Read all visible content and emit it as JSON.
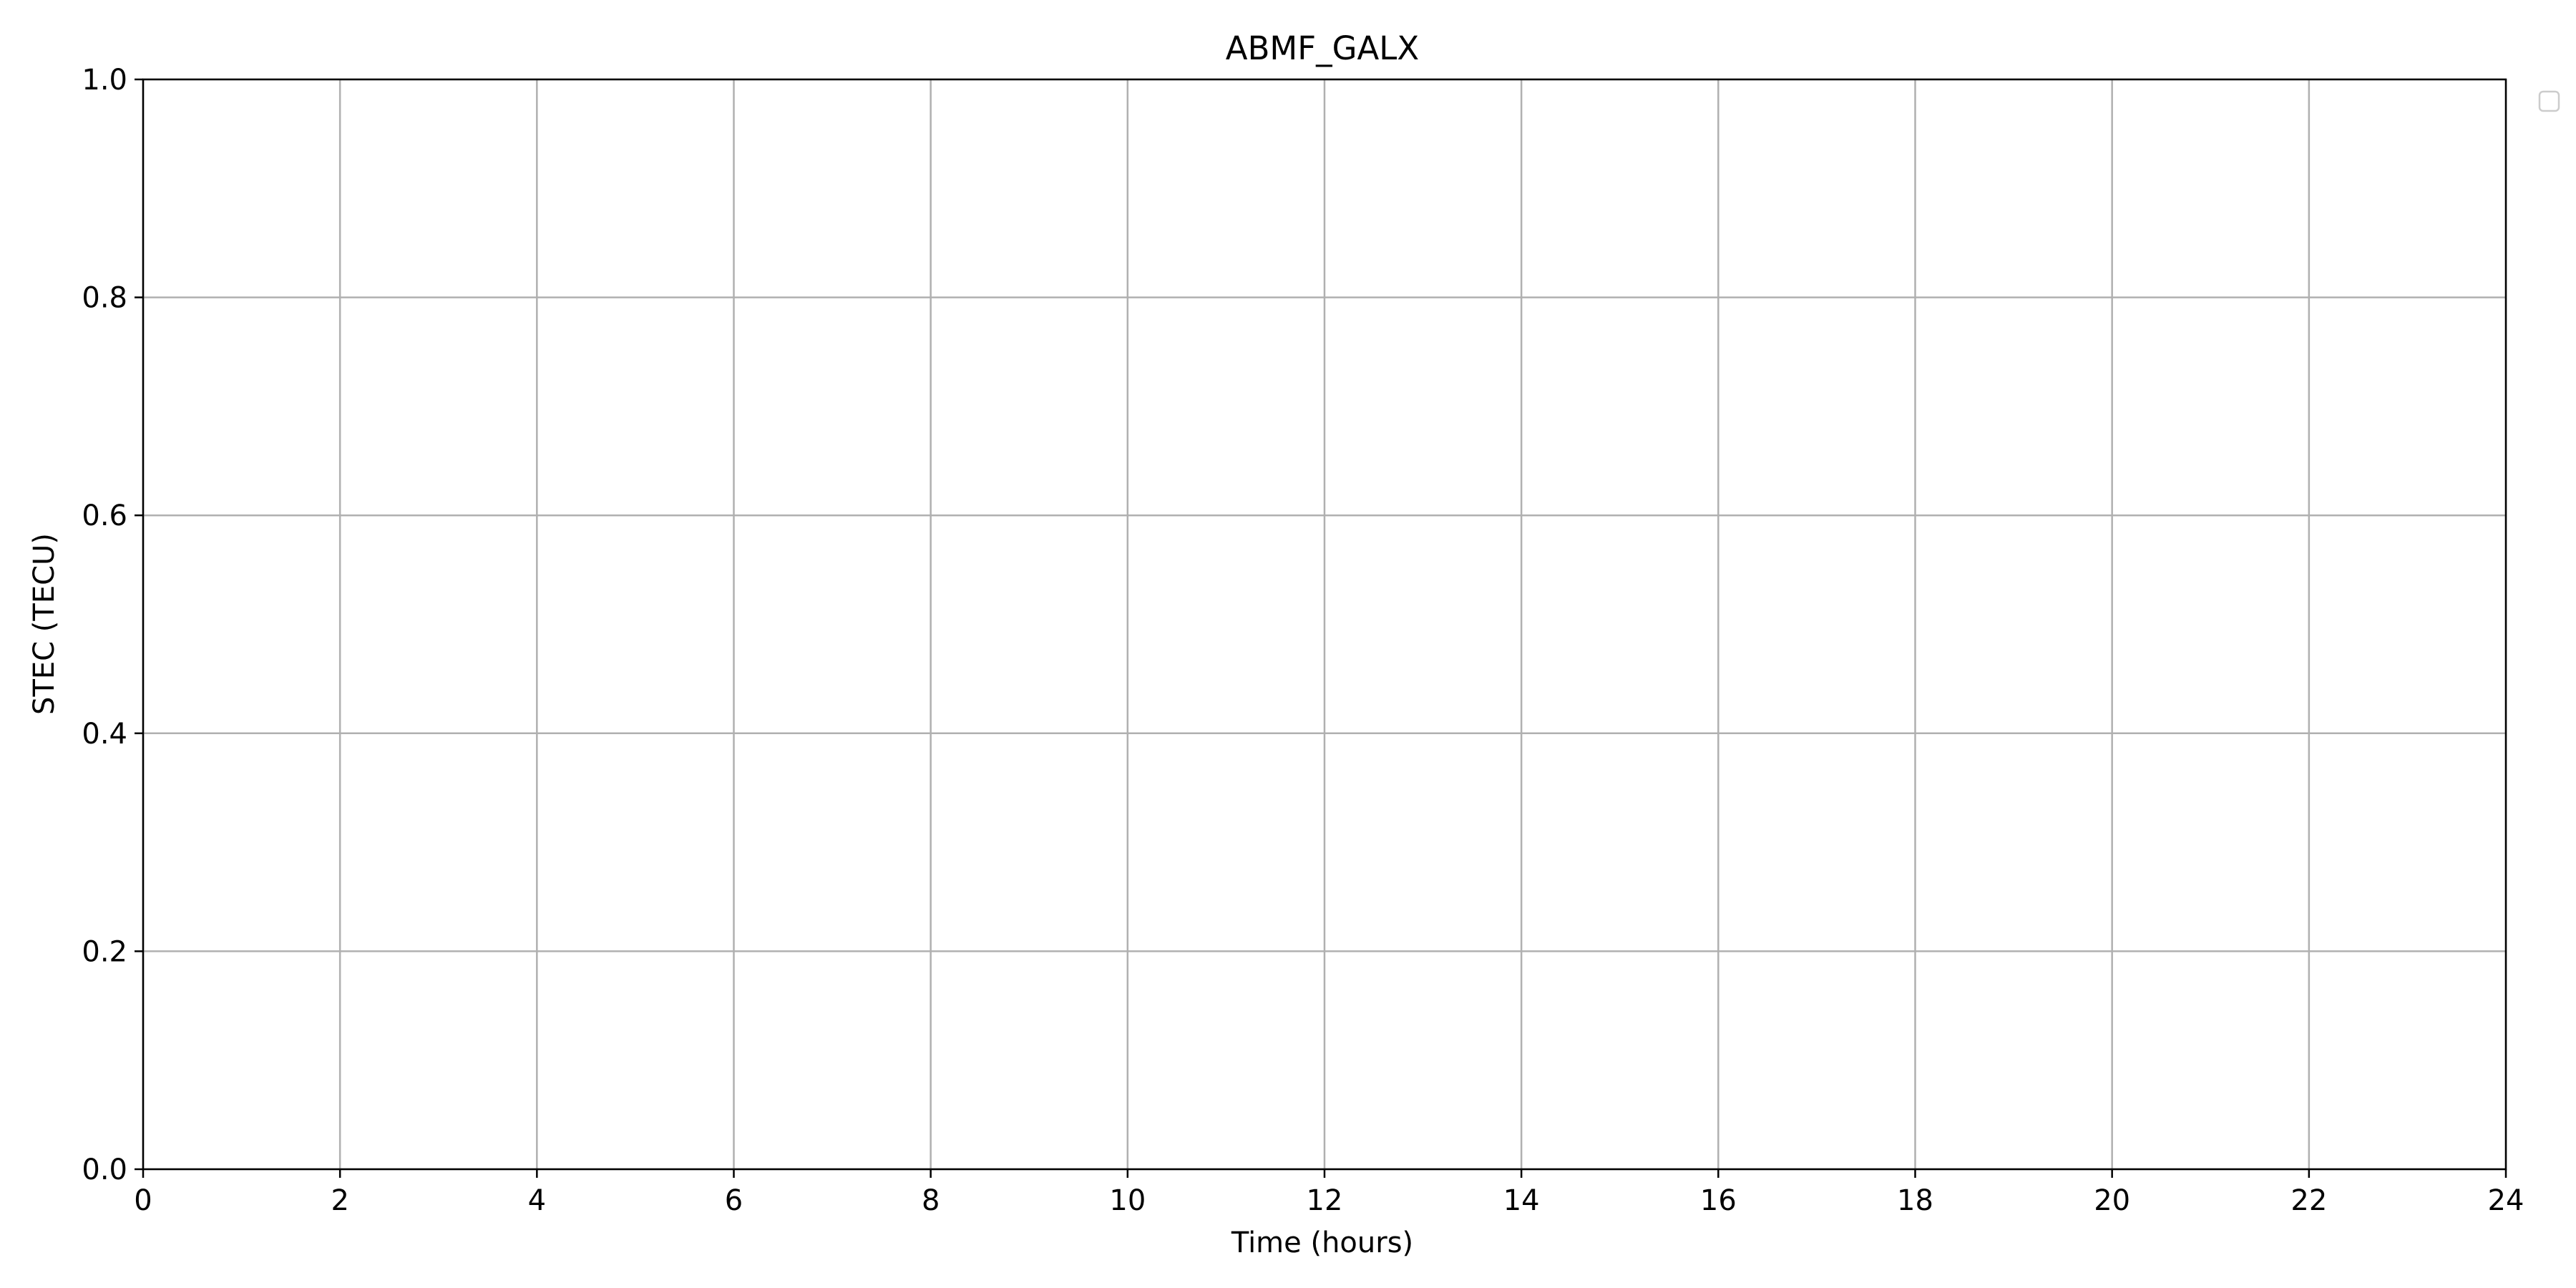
{
  "chart_data": {
    "type": "line",
    "title": "ABMF_GALX",
    "xlabel": "Time (hours)",
    "ylabel": "STEC (TECU)",
    "xlim": [
      0,
      24
    ],
    "ylim": [
      0.0,
      1.0
    ],
    "xticks": [
      "0",
      "2",
      "4",
      "6",
      "8",
      "10",
      "12",
      "14",
      "16",
      "18",
      "20",
      "22",
      "24"
    ],
    "yticks": [
      "0.0",
      "0.2",
      "0.4",
      "0.6",
      "0.8",
      "1.0"
    ],
    "grid": true,
    "legend": "outside top-right, empty",
    "series": []
  },
  "colors": {
    "grid": "#b0b0b0",
    "axes": "#000000",
    "background": "#ffffff",
    "legend_border": "#cccccc"
  }
}
